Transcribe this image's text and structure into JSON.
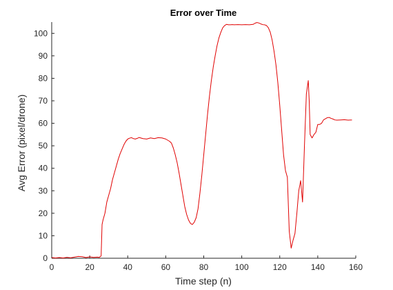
{
  "chart_data": {
    "type": "line",
    "title": "Error over Time",
    "xlabel": "Time step (n)",
    "ylabel": "Avg Error (pixel/drone)",
    "xlim": [
      0,
      160
    ],
    "ylim": [
      0,
      105
    ],
    "xticks": [
      0,
      20,
      40,
      60,
      80,
      100,
      120,
      140,
      160
    ],
    "yticks": [
      0,
      10,
      20,
      30,
      40,
      50,
      60,
      70,
      80,
      90,
      100
    ],
    "grid": false,
    "line_color": "#e00000",
    "series": [
      {
        "x": [
          0,
          2,
          4,
          6,
          8,
          10,
          12,
          14,
          16,
          18,
          20,
          22,
          24,
          25,
          26,
          26.5,
          27,
          28,
          29,
          30,
          31,
          32,
          33,
          34,
          35,
          36,
          37,
          38,
          39,
          40,
          41,
          42,
          43,
          44,
          45,
          46,
          48,
          50,
          52,
          54,
          56,
          58,
          60,
          62,
          63,
          64,
          65,
          66,
          67,
          68,
          69,
          70,
          71,
          72,
          73,
          74,
          75,
          76,
          77,
          78,
          79,
          80,
          81,
          82,
          83,
          84,
          85,
          86,
          87,
          88,
          89,
          90,
          91,
          92,
          93,
          94,
          95,
          96,
          98,
          100,
          102,
          104,
          106,
          107,
          108,
          109,
          110,
          111,
          112,
          113,
          114,
          115,
          116,
          117,
          118,
          119,
          120,
          121,
          122,
          123,
          124,
          125,
          126,
          127,
          128,
          129,
          130,
          131,
          132,
          133,
          134,
          135,
          135.5,
          136,
          137,
          138,
          139,
          140,
          141,
          142,
          143,
          144,
          145,
          146,
          147,
          148,
          149,
          150,
          152,
          154,
          156,
          158
        ],
        "y": [
          0.3,
          0.1,
          0.3,
          0.1,
          0.4,
          0.2,
          0.5,
          0.8,
          0.7,
          0.3,
          0.6,
          0.4,
          0.5,
          0.4,
          1,
          15,
          17,
          20,
          25,
          28,
          31,
          35,
          38,
          41,
          44,
          46.5,
          48.5,
          50.5,
          52,
          53,
          53.4,
          53.6,
          53.2,
          53.0,
          53.3,
          53.7,
          53.2,
          53.0,
          53.5,
          53.2,
          53.6,
          53.5,
          53.0,
          52.0,
          51.2,
          49.0,
          46.0,
          42.5,
          38.0,
          33.0,
          28.0,
          23.0,
          19.5,
          17.0,
          15.5,
          15.0,
          16.0,
          18.0,
          22.0,
          29.0,
          37.0,
          46.0,
          55.0,
          64.0,
          72.0,
          79.0,
          85.0,
          90.0,
          94.5,
          98.0,
          100.5,
          102.5,
          103.5,
          104.0,
          103.8,
          103.8,
          103.9,
          103.8,
          103.9,
          103.8,
          103.9,
          103.8,
          104.0,
          104.5,
          104.8,
          104.6,
          104.2,
          103.9,
          103.8,
          103.5,
          102.5,
          100.5,
          97.0,
          92.0,
          86.0,
          78.0,
          68.0,
          57.0,
          46.0,
          39.0,
          36.0,
          12.0,
          4.5,
          8.0,
          11.0,
          20.0,
          30.0,
          34.5,
          25.0,
          50.0,
          73.0,
          79.0,
          70.0,
          55.0,
          53.5,
          55.0,
          56.0,
          59.5,
          59.5,
          60.0,
          61.5,
          62.0,
          62.5,
          62.6,
          62.2,
          61.9,
          61.5,
          61.4,
          61.5,
          61.6,
          61.4,
          61.5
        ]
      }
    ]
  }
}
